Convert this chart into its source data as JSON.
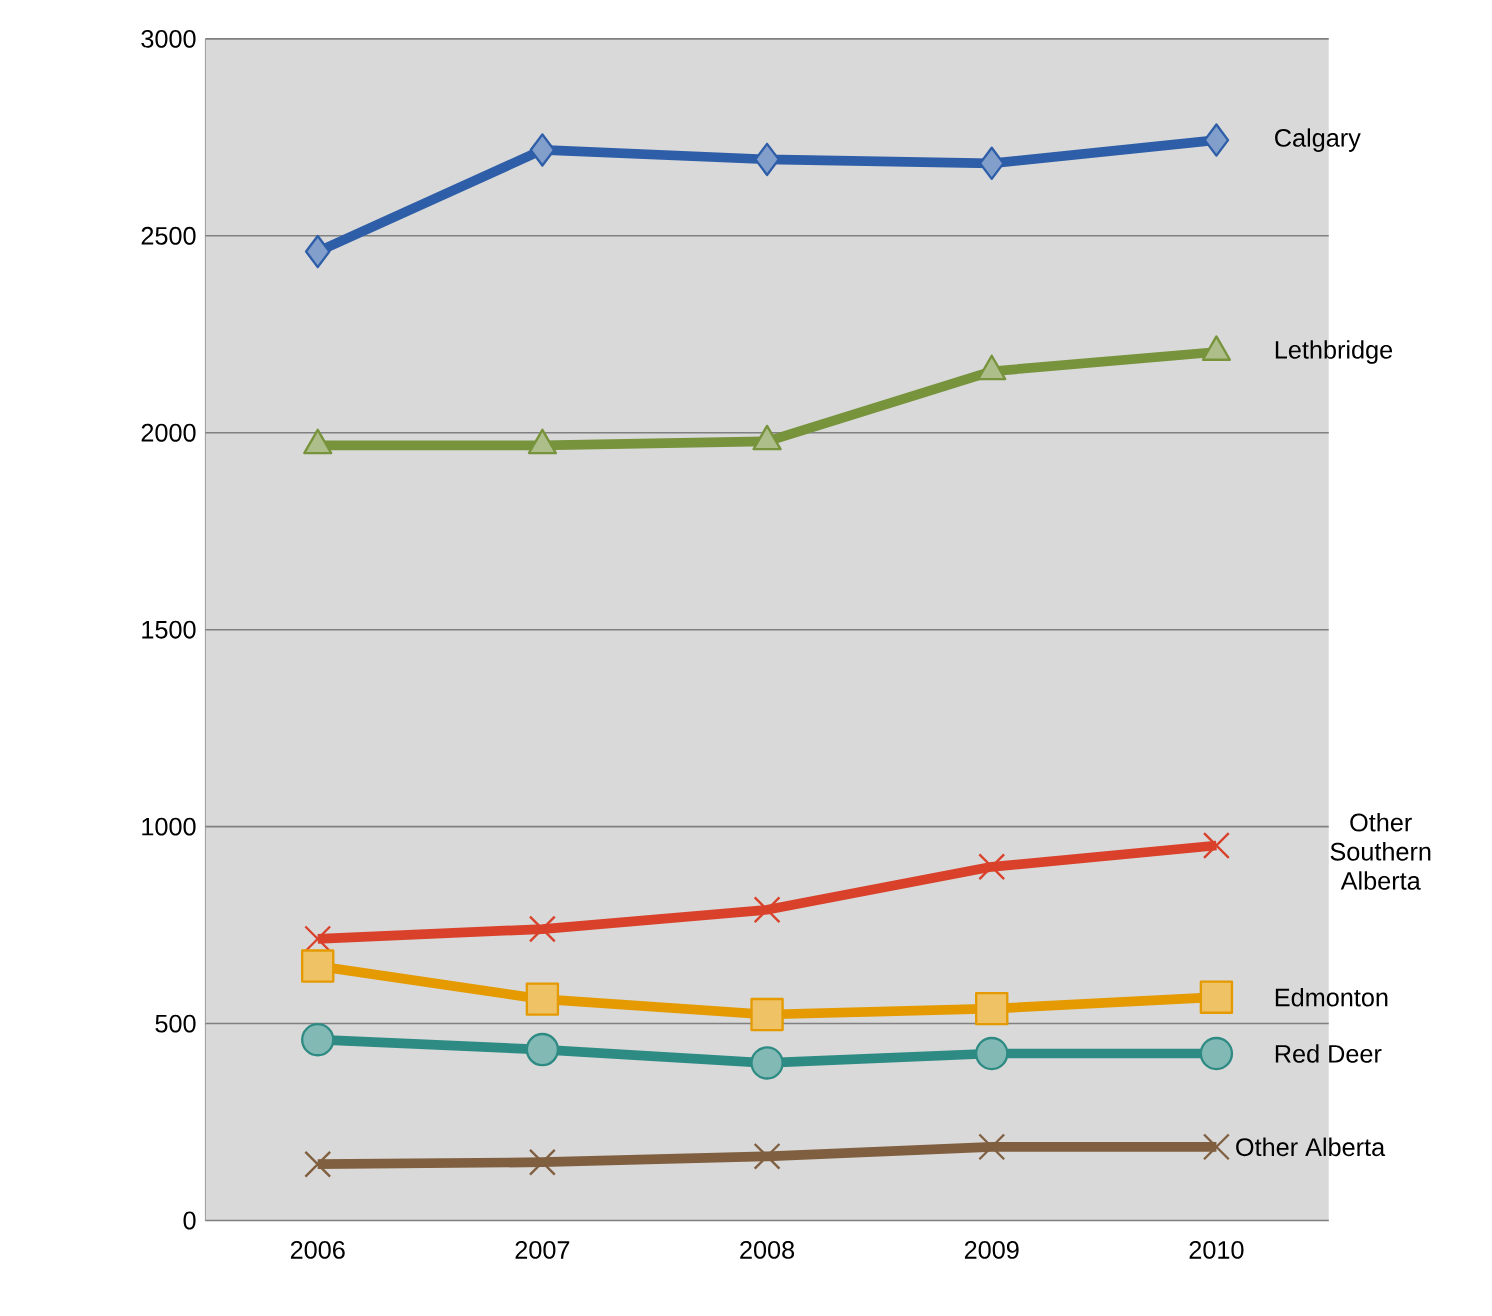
{
  "chart_data": {
    "type": "line",
    "categories": [
      "2006",
      "2007",
      "2008",
      "2009",
      "2010"
    ],
    "series": [
      {
        "name": "Calgary",
        "color": "#2e5ea8",
        "marker": "diamond",
        "values": [
          2460,
          2718,
          2694,
          2684,
          2743
        ]
      },
      {
        "name": "Lethbridge",
        "color": "#77933c",
        "marker": "triangle",
        "values": [
          1968,
          1968,
          1978,
          2156,
          2205
        ]
      },
      {
        "name": "Other Southern Alberta",
        "color": "#d9412b",
        "marker": "cross",
        "values": [
          715,
          740,
          789,
          898,
          952
        ]
      },
      {
        "name": "Edmonton",
        "color": "#e49a00",
        "marker": "square",
        "values": [
          646,
          562,
          523,
          538,
          567
        ]
      },
      {
        "name": "Red Deer",
        "color": "#2e8b84",
        "marker": "circle",
        "values": [
          459,
          434,
          400,
          424,
          424
        ]
      },
      {
        "name": "Other Alberta",
        "color": "#7f5f3f",
        "marker": "cross",
        "values": [
          143,
          148,
          163,
          187,
          187
        ]
      }
    ],
    "ylim": [
      0,
      3000
    ],
    "yticks": [
      0,
      500,
      1000,
      1500,
      2000,
      2500,
      3000
    ],
    "grid": "y",
    "legend": false,
    "line_style": "solid"
  }
}
